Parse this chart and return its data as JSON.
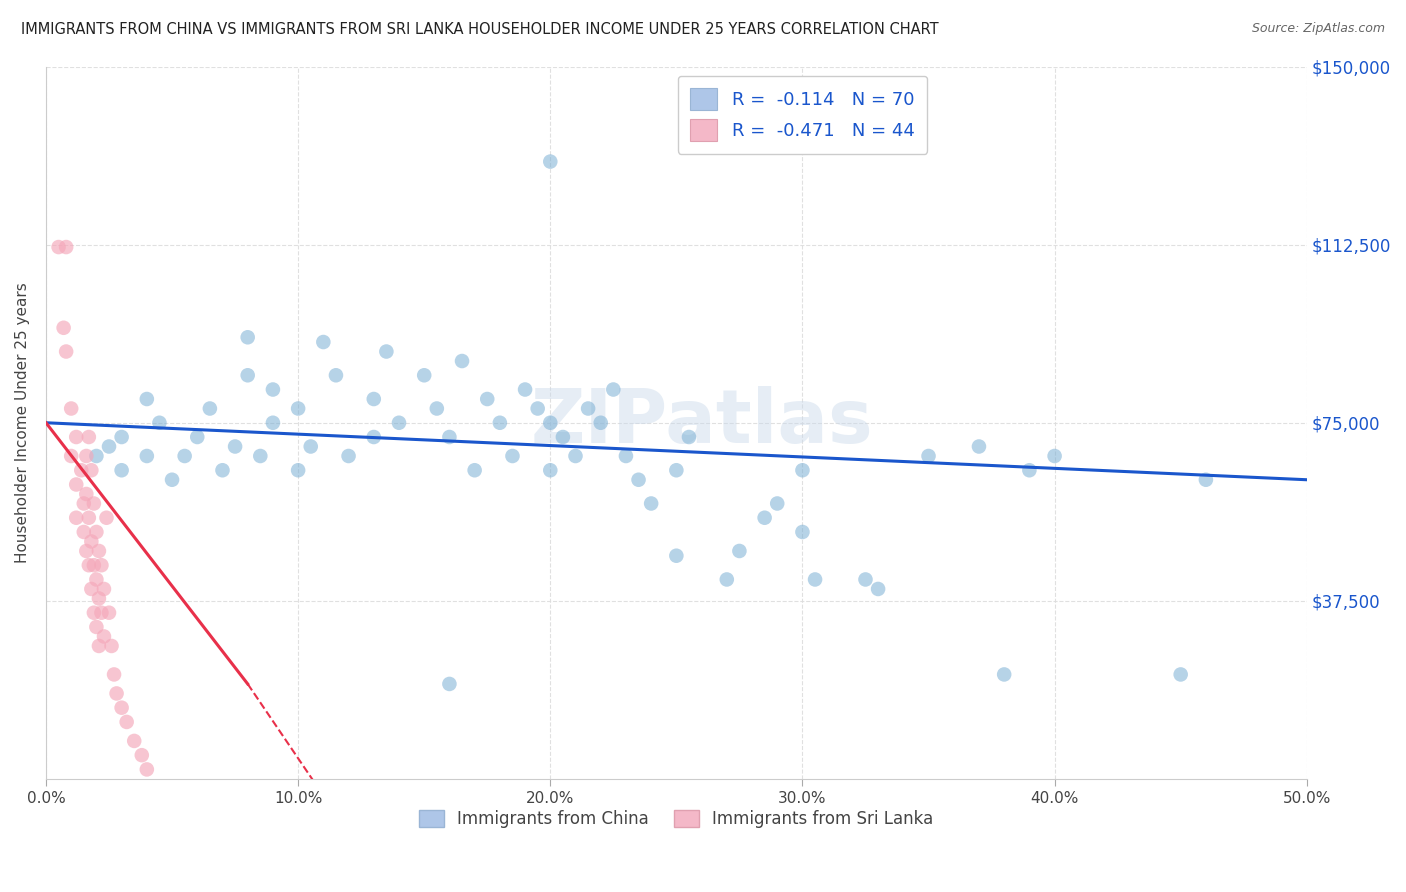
{
  "title": "IMMIGRANTS FROM CHINA VS IMMIGRANTS FROM SRI LANKA HOUSEHOLDER INCOME UNDER 25 YEARS CORRELATION CHART",
  "source": "Source: ZipAtlas.com",
  "ylabel": "Householder Income Under 25 years",
  "xlim": [
    0.0,
    0.5
  ],
  "ylim": [
    0,
    150000
  ],
  "xtick_labels": [
    "0.0%",
    "10.0%",
    "20.0%",
    "30.0%",
    "40.0%",
    "50.0%"
  ],
  "xtick_vals": [
    0.0,
    0.1,
    0.2,
    0.3,
    0.4,
    0.5
  ],
  "ytick_labels": [
    "$37,500",
    "$75,000",
    "$112,500",
    "$150,000"
  ],
  "ytick_vals": [
    37500,
    75000,
    112500,
    150000
  ],
  "china_color": "#7bafd4",
  "srilanka_color": "#f4a7b9",
  "trendline_china_color": "#1a56cc",
  "trendline_srilanka_color": "#e8304a",
  "watermark": "ZIPatlas",
  "background_color": "#ffffff",
  "grid_color": "#dddddd",
  "china_trendline": [
    [
      0.0,
      75000
    ],
    [
      0.5,
      63000
    ]
  ],
  "srilanka_trendline": [
    [
      0.0,
      75000
    ],
    [
      0.08,
      20000
    ]
  ],
  "china_scatter": [
    [
      0.02,
      68000
    ],
    [
      0.025,
      70000
    ],
    [
      0.03,
      65000
    ],
    [
      0.03,
      72000
    ],
    [
      0.04,
      80000
    ],
    [
      0.04,
      68000
    ],
    [
      0.045,
      75000
    ],
    [
      0.05,
      63000
    ],
    [
      0.055,
      68000
    ],
    [
      0.06,
      72000
    ],
    [
      0.065,
      78000
    ],
    [
      0.07,
      65000
    ],
    [
      0.075,
      70000
    ],
    [
      0.08,
      85000
    ],
    [
      0.08,
      93000
    ],
    [
      0.085,
      68000
    ],
    [
      0.09,
      75000
    ],
    [
      0.09,
      82000
    ],
    [
      0.1,
      78000
    ],
    [
      0.1,
      65000
    ],
    [
      0.105,
      70000
    ],
    [
      0.11,
      92000
    ],
    [
      0.115,
      85000
    ],
    [
      0.12,
      68000
    ],
    [
      0.13,
      72000
    ],
    [
      0.13,
      80000
    ],
    [
      0.135,
      90000
    ],
    [
      0.14,
      75000
    ],
    [
      0.15,
      85000
    ],
    [
      0.155,
      78000
    ],
    [
      0.16,
      72000
    ],
    [
      0.165,
      88000
    ],
    [
      0.17,
      65000
    ],
    [
      0.175,
      80000
    ],
    [
      0.18,
      75000
    ],
    [
      0.185,
      68000
    ],
    [
      0.19,
      82000
    ],
    [
      0.195,
      78000
    ],
    [
      0.2,
      75000
    ],
    [
      0.2,
      65000
    ],
    [
      0.205,
      72000
    ],
    [
      0.21,
      68000
    ],
    [
      0.215,
      78000
    ],
    [
      0.22,
      75000
    ],
    [
      0.225,
      82000
    ],
    [
      0.23,
      68000
    ],
    [
      0.235,
      63000
    ],
    [
      0.24,
      58000
    ],
    [
      0.25,
      65000
    ],
    [
      0.255,
      72000
    ],
    [
      0.27,
      42000
    ],
    [
      0.275,
      48000
    ],
    [
      0.285,
      55000
    ],
    [
      0.29,
      58000
    ],
    [
      0.3,
      65000
    ],
    [
      0.305,
      42000
    ],
    [
      0.325,
      42000
    ],
    [
      0.33,
      40000
    ],
    [
      0.35,
      68000
    ],
    [
      0.37,
      70000
    ],
    [
      0.39,
      65000
    ],
    [
      0.4,
      68000
    ],
    [
      0.16,
      20000
    ],
    [
      0.2,
      130000
    ],
    [
      0.3,
      52000
    ],
    [
      0.25,
      47000
    ],
    [
      0.38,
      22000
    ],
    [
      0.45,
      22000
    ],
    [
      0.46,
      63000
    ]
  ],
  "srilanka_scatter": [
    [
      0.005,
      112000
    ],
    [
      0.007,
      95000
    ],
    [
      0.008,
      90000
    ],
    [
      0.01,
      78000
    ],
    [
      0.01,
      68000
    ],
    [
      0.012,
      72000
    ],
    [
      0.012,
      62000
    ],
    [
      0.012,
      55000
    ],
    [
      0.014,
      65000
    ],
    [
      0.015,
      58000
    ],
    [
      0.015,
      52000
    ],
    [
      0.016,
      68000
    ],
    [
      0.016,
      60000
    ],
    [
      0.016,
      48000
    ],
    [
      0.017,
      72000
    ],
    [
      0.017,
      55000
    ],
    [
      0.017,
      45000
    ],
    [
      0.018,
      65000
    ],
    [
      0.018,
      50000
    ],
    [
      0.018,
      40000
    ],
    [
      0.019,
      58000
    ],
    [
      0.019,
      45000
    ],
    [
      0.019,
      35000
    ],
    [
      0.02,
      52000
    ],
    [
      0.02,
      42000
    ],
    [
      0.02,
      32000
    ],
    [
      0.021,
      48000
    ],
    [
      0.021,
      38000
    ],
    [
      0.021,
      28000
    ],
    [
      0.022,
      45000
    ],
    [
      0.022,
      35000
    ],
    [
      0.023,
      40000
    ],
    [
      0.023,
      30000
    ],
    [
      0.024,
      55000
    ],
    [
      0.025,
      35000
    ],
    [
      0.026,
      28000
    ],
    [
      0.027,
      22000
    ],
    [
      0.028,
      18000
    ],
    [
      0.03,
      15000
    ],
    [
      0.032,
      12000
    ],
    [
      0.035,
      8000
    ],
    [
      0.038,
      5000
    ],
    [
      0.04,
      2000
    ],
    [
      0.008,
      112000
    ]
  ]
}
